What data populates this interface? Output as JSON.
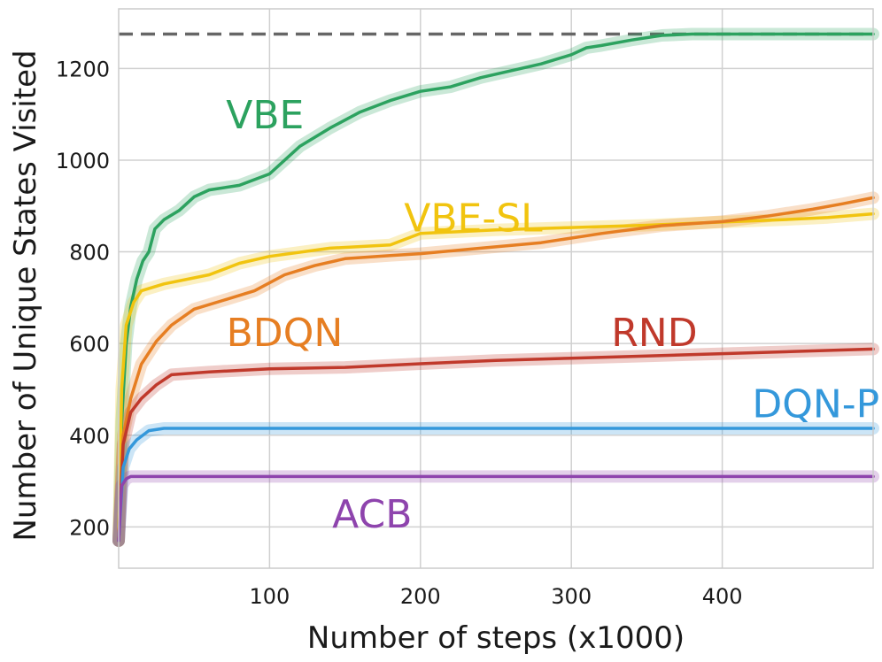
{
  "chart_data": {
    "type": "line",
    "xlabel": "Number of steps (x1000)",
    "ylabel": "Number of Unique States Visited",
    "xlim": [
      0,
      500
    ],
    "ylim": [
      110,
      1330
    ],
    "xticks": [
      100,
      200,
      300,
      400
    ],
    "yticks": [
      200,
      400,
      600,
      800,
      1000,
      1200
    ],
    "grid": true,
    "reference_line": {
      "y": 1275,
      "style": "dashed",
      "color": "#666666"
    },
    "series": [
      {
        "name": "VBE",
        "color": "#2ca25f",
        "label_at": [
          97,
          1100
        ],
        "points": [
          [
            0,
            170
          ],
          [
            2,
            430
          ],
          [
            5,
            600
          ],
          [
            8,
            680
          ],
          [
            12,
            740
          ],
          [
            16,
            780
          ],
          [
            20,
            800
          ],
          [
            24,
            850
          ],
          [
            30,
            870
          ],
          [
            40,
            890
          ],
          [
            50,
            920
          ],
          [
            60,
            935
          ],
          [
            80,
            945
          ],
          [
            100,
            970
          ],
          [
            120,
            1030
          ],
          [
            140,
            1070
          ],
          [
            160,
            1105
          ],
          [
            180,
            1130
          ],
          [
            200,
            1150
          ],
          [
            220,
            1160
          ],
          [
            240,
            1180
          ],
          [
            260,
            1195
          ],
          [
            280,
            1210
          ],
          [
            300,
            1230
          ],
          [
            310,
            1245
          ],
          [
            320,
            1250
          ],
          [
            340,
            1262
          ],
          [
            360,
            1272
          ],
          [
            380,
            1275
          ],
          [
            500,
            1275
          ]
        ]
      },
      {
        "name": "VBE-SL",
        "color": "#f1c40f",
        "label_at": [
          235,
          875
        ],
        "points": [
          [
            0,
            170
          ],
          [
            2,
            500
          ],
          [
            5,
            640
          ],
          [
            10,
            690
          ],
          [
            15,
            715
          ],
          [
            30,
            730
          ],
          [
            60,
            750
          ],
          [
            80,
            775
          ],
          [
            100,
            790
          ],
          [
            140,
            808
          ],
          [
            180,
            815
          ],
          [
            200,
            840
          ],
          [
            250,
            848
          ],
          [
            300,
            853
          ],
          [
            350,
            858
          ],
          [
            400,
            865
          ],
          [
            440,
            870
          ],
          [
            470,
            875
          ],
          [
            500,
            883
          ]
        ]
      },
      {
        "name": "BDQN",
        "color": "#e67e22",
        "label_at": [
          110,
          625
        ],
        "points": [
          [
            0,
            170
          ],
          [
            3,
            400
          ],
          [
            8,
            480
          ],
          [
            15,
            555
          ],
          [
            25,
            605
          ],
          [
            35,
            640
          ],
          [
            50,
            675
          ],
          [
            70,
            695
          ],
          [
            90,
            715
          ],
          [
            110,
            750
          ],
          [
            130,
            770
          ],
          [
            150,
            785
          ],
          [
            180,
            792
          ],
          [
            200,
            796
          ],
          [
            240,
            808
          ],
          [
            280,
            820
          ],
          [
            320,
            840
          ],
          [
            360,
            857
          ],
          [
            400,
            866
          ],
          [
            430,
            878
          ],
          [
            460,
            893
          ],
          [
            480,
            905
          ],
          [
            500,
            918
          ]
        ]
      },
      {
        "name": "RND",
        "color": "#c0392b",
        "label_at": [
          355,
          625
        ],
        "points": [
          [
            0,
            170
          ],
          [
            3,
            380
          ],
          [
            8,
            450
          ],
          [
            15,
            480
          ],
          [
            25,
            510
          ],
          [
            35,
            532
          ],
          [
            60,
            538
          ],
          [
            100,
            545
          ],
          [
            150,
            548
          ],
          [
            200,
            556
          ],
          [
            250,
            563
          ],
          [
            300,
            568
          ],
          [
            350,
            573
          ],
          [
            400,
            578
          ],
          [
            450,
            583
          ],
          [
            500,
            588
          ]
        ]
      },
      {
        "name": "DQN-P",
        "color": "#3498db",
        "label_at": [
          462,
          470
        ],
        "points": [
          [
            0,
            170
          ],
          [
            3,
            330
          ],
          [
            7,
            370
          ],
          [
            12,
            390
          ],
          [
            20,
            410
          ],
          [
            30,
            415
          ],
          [
            500,
            415
          ]
        ]
      },
      {
        "name": "ACB",
        "color": "#8e44ad",
        "label_at": [
          168,
          230
        ],
        "points": [
          [
            0,
            170
          ],
          [
            2,
            290
          ],
          [
            5,
            305
          ],
          [
            8,
            310
          ],
          [
            500,
            310
          ]
        ]
      }
    ]
  }
}
